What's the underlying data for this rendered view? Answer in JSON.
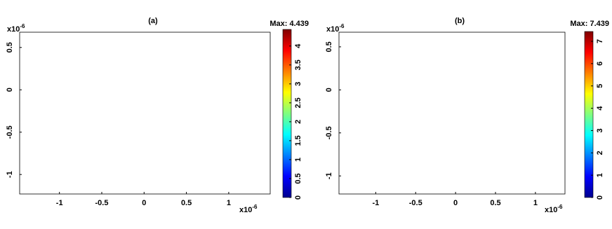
{
  "chart_data": [
    {
      "type": "heatmap",
      "title": "(a)",
      "max_label": "Max: 4.439",
      "axis_scale": {
        "base": "x10",
        "exponent": "-6"
      },
      "xlim": [
        -1.47,
        1.49
      ],
      "xticks": [
        -1,
        -0.5,
        0,
        0.5,
        1
      ],
      "ylim": [
        -1.23,
        0.68
      ],
      "yticks": [
        -1,
        -0.5,
        0,
        0.5
      ],
      "clim": [
        0,
        4.439
      ],
      "cticks": [
        0,
        0.5,
        1,
        1.5,
        2,
        2.5,
        3,
        3.5,
        4
      ]
    },
    {
      "type": "heatmap",
      "title": "(b)",
      "max_label": "Max: 7.439",
      "axis_scale": {
        "base": "x10",
        "exponent": "-6"
      },
      "xlim": [
        -1.46,
        1.37
      ],
      "xticks": [
        -1,
        -0.5,
        0,
        0.5,
        1
      ],
      "ylim": [
        -1.21,
        0.67
      ],
      "yticks": [
        -1,
        -0.5,
        0,
        0.5
      ],
      "clim": [
        0,
        7.439
      ],
      "cticks": [
        0,
        1,
        2,
        3,
        4,
        5,
        6,
        7
      ]
    }
  ]
}
